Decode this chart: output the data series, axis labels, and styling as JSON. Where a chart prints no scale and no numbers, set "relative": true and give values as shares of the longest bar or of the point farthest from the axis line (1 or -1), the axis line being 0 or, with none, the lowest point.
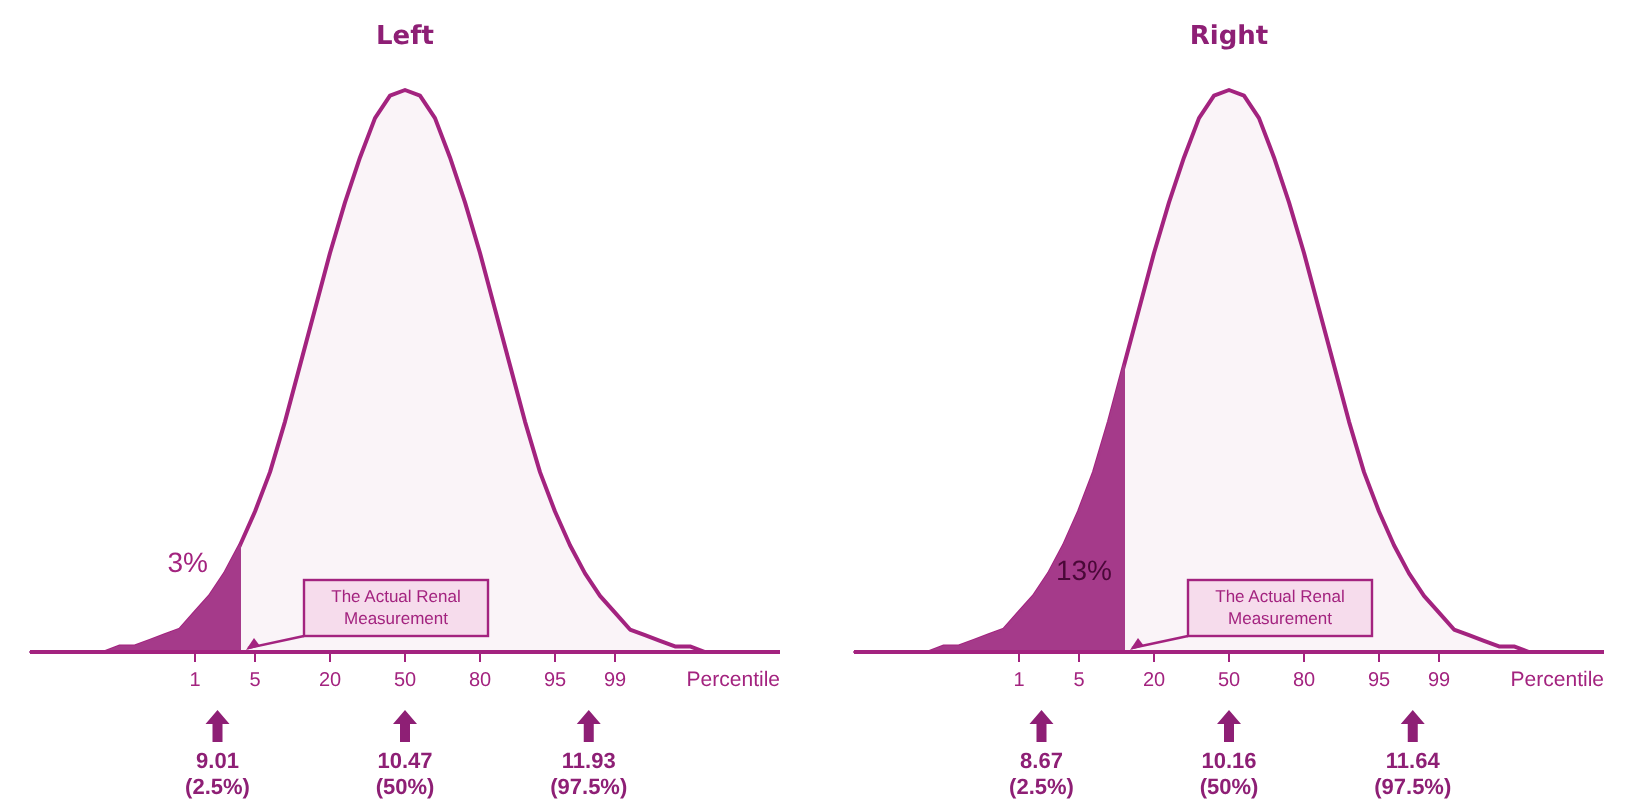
{
  "chart_data": [
    {
      "type": "area",
      "title": "Left",
      "xlabel": "Percentile",
      "relative": true,
      "categories": [
        null,
        null,
        null,
        null,
        null,
        null,
        null,
        null,
        null,
        null,
        null,
        "1",
        null,
        null,
        null,
        "5",
        null,
        null,
        null,
        null,
        "20",
        null,
        null,
        null,
        null,
        "50",
        null,
        null,
        null,
        null,
        "80",
        null,
        null,
        null,
        null,
        "95",
        null,
        null,
        null,
        "99",
        null,
        null,
        null,
        null,
        null,
        null,
        null,
        null,
        null,
        null,
        null
      ],
      "series": [
        {
          "color": "#a3237f",
          "values": [
            0,
            0,
            0,
            0,
            0,
            0,
            0.01,
            0.01,
            0.02,
            0.03,
            0.04,
            0.07,
            0.1,
            0.14,
            0.19,
            0.25,
            0.32,
            0.41,
            0.51,
            0.61,
            0.71,
            0.8,
            0.88,
            0.95,
            0.99,
            1,
            0.99,
            0.95,
            0.88,
            0.8,
            0.71,
            0.61,
            0.51,
            0.41,
            0.32,
            0.25,
            0.19,
            0.14,
            0.1,
            0.07,
            0.04,
            0.03,
            0.02,
            0.01,
            0.01,
            0,
            0,
            0,
            0,
            0,
            0
          ]
        },
        {
          "color": "#a53a8a",
          "values": [
            0,
            0,
            0,
            0,
            0,
            0,
            0.01,
            0.01,
            0.02,
            0.03,
            0.04,
            0.07,
            0.1,
            0.14,
            0.19,
            null,
            null,
            null,
            null,
            null,
            null,
            null,
            null,
            null,
            null,
            null,
            null,
            null,
            null,
            null,
            null,
            null,
            null,
            null,
            null,
            null,
            null,
            null,
            null,
            null,
            null,
            null,
            null,
            null,
            null,
            null,
            null,
            null,
            null,
            null,
            null
          ]
        }
      ],
      "annotations": [
        "3%",
        "The Actual Renal\nMeasurement",
        "9.01\n(2.5%)",
        "10.47\n(50%)",
        "11.93\n(97.5%)"
      ]
    },
    {
      "type": "area",
      "title": "Right",
      "xlabel": "Percentile",
      "relative": true,
      "categories": [
        null,
        null,
        null,
        null,
        null,
        null,
        null,
        null,
        null,
        null,
        null,
        "1",
        null,
        null,
        null,
        "5",
        null,
        null,
        null,
        null,
        "20",
        null,
        null,
        null,
        null,
        "50",
        null,
        null,
        null,
        null,
        "80",
        null,
        null,
        null,
        null,
        "95",
        null,
        null,
        null,
        "99",
        null,
        null,
        null,
        null,
        null,
        null,
        null,
        null,
        null,
        null,
        null
      ],
      "series": [
        {
          "color": "#a3237f",
          "values": [
            0,
            0,
            0,
            0,
            0,
            0,
            0.01,
            0.01,
            0.02,
            0.03,
            0.04,
            0.07,
            0.1,
            0.14,
            0.19,
            0.25,
            0.32,
            0.41,
            0.51,
            0.61,
            0.71,
            0.8,
            0.88,
            0.95,
            0.99,
            1,
            0.99,
            0.95,
            0.88,
            0.8,
            0.71,
            0.61,
            0.51,
            0.41,
            0.32,
            0.25,
            0.19,
            0.14,
            0.1,
            0.07,
            0.04,
            0.03,
            0.02,
            0.01,
            0.01,
            0,
            0,
            0,
            0,
            0,
            0
          ]
        },
        {
          "color": "#a53a8a",
          "values": [
            0,
            0,
            0,
            0,
            0,
            0,
            0.01,
            0.01,
            0.02,
            0.03,
            0.04,
            0.07,
            0.1,
            0.14,
            0.19,
            0.25,
            0.32,
            0.41,
            0.51,
            null,
            null,
            null,
            null,
            null,
            null,
            null,
            null,
            null,
            null,
            null,
            null,
            null,
            null,
            null,
            null,
            null,
            null,
            null,
            null,
            null,
            null,
            null,
            null,
            null,
            null,
            null,
            null,
            null,
            null,
            null,
            null
          ]
        }
      ],
      "annotations": [
        "13%",
        "The Actual Renal\nMeasurement",
        "8.67\n(2.5%)",
        "10.16\n(50%)",
        "11.64\n(97.5%)"
      ]
    }
  ]
}
